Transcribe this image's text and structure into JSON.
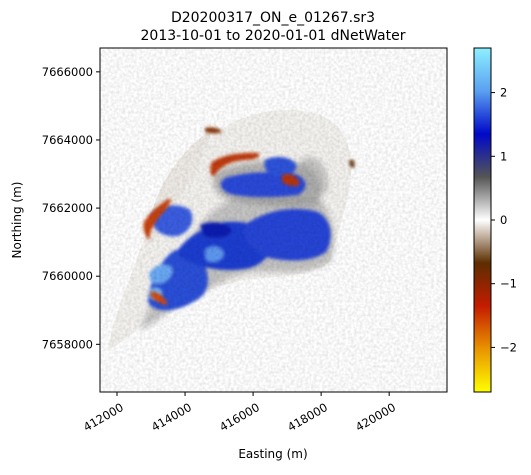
{
  "chart_data": {
    "type": "heatmap",
    "title": "D20200317_ON_e_01267.sr3",
    "subtitle": "2013-10-01 to 2020-01-01  dNetWater",
    "xlabel": "Easting (m)",
    "ylabel": "Northing (m)",
    "xlim": [
      411500,
      421700
    ],
    "ylim": [
      7656600,
      7666700
    ],
    "x_ticks": [
      412000,
      414000,
      416000,
      418000,
      420000
    ],
    "x_tick_labels": [
      "412000",
      "414000",
      "416000",
      "418000",
      "420000"
    ],
    "y_ticks": [
      7658000,
      7660000,
      7662000,
      7664000,
      7666000
    ],
    "y_tick_labels": [
      "7658000",
      "7660000",
      "7662000",
      "7664000",
      "7666000"
    ],
    "colorbar": {
      "range": [
        -2.7,
        2.7
      ],
      "ticks": [
        -2,
        -1,
        0,
        1,
        2
      ],
      "tick_labels": [
        "−2",
        "−1",
        "0",
        "1",
        "2"
      ],
      "colormap": [
        "#ffff00",
        "#e89400",
        "#c41c00",
        "#5c2e00",
        "#ffffff",
        "#555555",
        "#0008c8",
        "#5aa0f0",
        "#8cf0ff"
      ]
    },
    "features": [
      {
        "label": "wetting core (positive dNetWater)",
        "center": [
          416400,
          7661200
        ],
        "value": 1.2
      },
      {
        "label": "north-east blob",
        "center": [
          416900,
          7662500
        ],
        "value": 1.0
      },
      {
        "label": "drying rim north",
        "center": [
          416300,
          7663100
        ],
        "value": -1.8
      },
      {
        "label": "drying rim west",
        "center": [
          413500,
          7661900
        ],
        "value": -1.6
      },
      {
        "label": "drying rim south-west",
        "center": [
          413400,
          7659300
        ],
        "value": -1.4
      }
    ]
  }
}
